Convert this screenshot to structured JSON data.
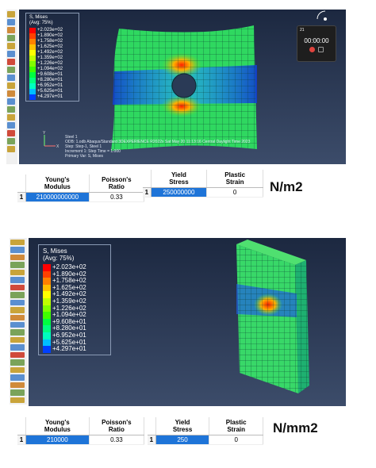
{
  "top": {
    "legend": {
      "title": "S, Mises",
      "subtitle": "(Avg: 75%)",
      "values": [
        "+2.023e+02",
        "+1.890e+02",
        "+1.758e+02",
        "+1.625e+02",
        "+1.492e+02",
        "+1.359e+02",
        "+1.226e+02",
        "+1.094e+02",
        "+9.608e+01",
        "+8.280e+01",
        "+6.952e+01",
        "+5.625e+01",
        "+4.297e+01"
      ]
    },
    "info_lines": [
      "Step: Step-1, Steel 1",
      "Increment    1: Step Time =    1.000",
      "Primary Var: S, Mises"
    ],
    "info_top": "Steel 1",
    "info_odb": "ODB: 1.odb    Abaqus/Standard 3DEXPERIENCE R2022x    Sat May 20 11:13:16 Central Daylight Time 2023",
    "recorder": {
      "label": "21",
      "time": "00:00:00"
    },
    "table1": {
      "headers": [
        "Young's\nModulus",
        "Poisson's\nRatio"
      ],
      "row_num": "1",
      "values": [
        "210000000000",
        "0.33"
      ]
    },
    "table2": {
      "headers": [
        "Yield\nStress",
        "Plastic\nStrain"
      ],
      "row_num": "1",
      "values": [
        "250000000",
        "0"
      ]
    },
    "unit": "N/m2"
  },
  "bottom": {
    "legend": {
      "title": "S, Mises",
      "subtitle": "(Avg: 75%)",
      "values": [
        "+2.023e+02",
        "+1.890e+02",
        "+1.758e+02",
        "+1.625e+02",
        "+1.492e+02",
        "+1.359e+02",
        "+1.226e+02",
        "+1.094e+02",
        "+9.608e+01",
        "+8.280e+01",
        "+6.952e+01",
        "+5.625e+01",
        "+4.297e+01"
      ]
    },
    "table1": {
      "headers": [
        "Young's\nModulus",
        "Poisson's\nRatio"
      ],
      "row_num": "1",
      "values": [
        "210000",
        "0.33"
      ]
    },
    "table2": {
      "headers": [
        "Yield\nStress",
        "Plastic\nStrain"
      ],
      "row_num": "1",
      "values": [
        "250",
        "0"
      ]
    },
    "unit": "N/mm2"
  },
  "colors": {
    "legend_bands": [
      "#ff0000",
      "#ff4000",
      "#ff8000",
      "#ffbf00",
      "#ffff00",
      "#bfff00",
      "#80ff00",
      "#40ff00",
      "#00ff40",
      "#00ff80",
      "#00ffbf",
      "#00bfff",
      "#0040ff"
    ],
    "selected": "#1e74d8",
    "record_button": "#e0443e"
  }
}
